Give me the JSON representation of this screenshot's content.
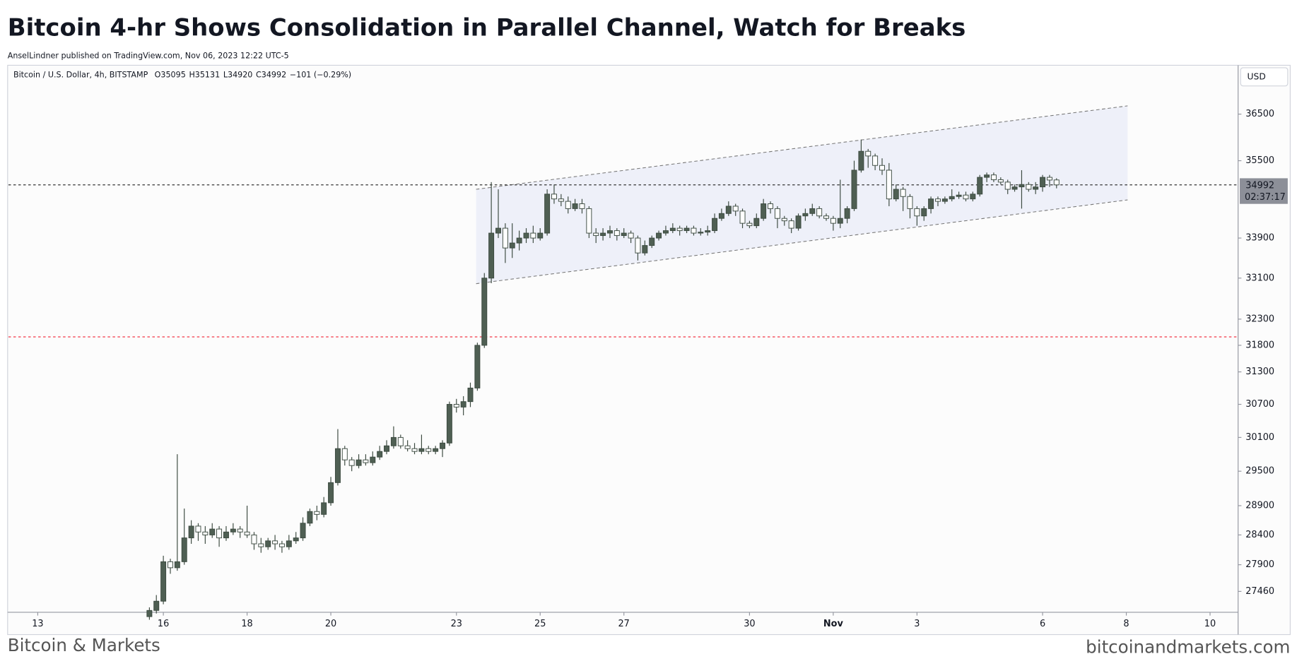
{
  "title": "Bitcoin 4-hr Shows Consolidation in Parallel Channel, Watch for Breaks",
  "subtitle": "AnselLindner published on TradingView.com, Nov 06, 2023 12:22 UTC-5",
  "footer_left": "Bitcoin & Markets",
  "footer_right": "bitcoinandmarkets.com",
  "chart_data": {
    "type": "candlestick",
    "symbol": "Bitcoin / U.S. Dollar, 4h, BITSTAMP",
    "ohlc_labels": [
      "O35095",
      "H35131",
      "L34920",
      "C34992"
    ],
    "change_label": "−101 (−0.29%)",
    "currency": "USD",
    "last_price_label": "34992",
    "countdown": "02:37:17",
    "log_scale": true,
    "grid": false,
    "up_color": "#4f5f53",
    "down_color": "#ffffff",
    "xlim": [
      12.3,
      41.67
    ],
    "xticks": [
      13,
      16,
      18,
      20,
      23,
      25,
      27,
      30,
      {
        "value": 32,
        "label": "Nov"
      },
      {
        "value": 34,
        "label": "3"
      },
      {
        "value": 37,
        "label": "6"
      },
      {
        "value": 39,
        "label": "8"
      },
      {
        "value": 41,
        "label": "10"
      }
    ],
    "ylim": [
      27120,
      37560
    ],
    "yticks": [
      36500,
      35500,
      33900,
      33100,
      32300,
      31800,
      31300,
      30700,
      30100,
      29500,
      28900,
      28400,
      27900,
      27460
    ],
    "x": [
      15.667,
      15.833,
      16,
      16.167,
      16.333,
      16.5,
      16.667,
      16.833,
      17,
      17.167,
      17.333,
      17.5,
      17.667,
      17.833,
      18,
      18.167,
      18.333,
      18.5,
      18.667,
      18.833,
      19,
      19.167,
      19.333,
      19.5,
      19.667,
      19.833,
      20,
      20.167,
      20.333,
      20.5,
      20.667,
      20.833,
      21,
      21.167,
      21.333,
      21.5,
      21.667,
      21.833,
      22,
      22.167,
      22.333,
      22.5,
      22.667,
      22.833,
      23,
      23.167,
      23.333,
      23.5,
      23.667,
      23.833,
      24,
      24.167,
      24.333,
      24.5,
      24.667,
      24.833,
      25,
      25.167,
      25.333,
      25.5,
      25.667,
      25.833,
      26,
      26.167,
      26.333,
      26.5,
      26.667,
      26.833,
      27,
      27.167,
      27.333,
      27.5,
      27.667,
      27.833,
      28,
      28.167,
      28.333,
      28.5,
      28.667,
      28.833,
      29,
      29.167,
      29.333,
      29.5,
      29.667,
      29.833,
      30,
      30.167,
      30.333,
      30.5,
      30.667,
      30.833,
      31,
      31.167,
      31.333,
      31.5,
      31.667,
      31.833,
      32,
      32.167,
      32.333,
      32.5,
      32.667,
      32.833,
      33,
      33.167,
      33.333,
      33.5,
      33.667,
      33.833,
      34,
      34.167,
      34.333,
      34.5,
      34.667,
      34.833,
      35,
      35.167,
      35.333,
      35.5,
      35.667,
      35.833,
      36,
      36.167,
      36.333,
      36.5,
      36.667,
      36.833,
      37,
      37.167,
      37.333
    ],
    "open": [
      27050,
      27150,
      27300,
      27950,
      27850,
      27950,
      28350,
      28550,
      28450,
      28400,
      28500,
      28350,
      28450,
      28500,
      28450,
      28400,
      28250,
      28200,
      28300,
      28250,
      28200,
      28300,
      28350,
      28600,
      28800,
      28750,
      28950,
      29300,
      29900,
      29700,
      29600,
      29700,
      29650,
      29750,
      29850,
      29950,
      30100,
      29950,
      29900,
      29850,
      29900,
      29850,
      29900,
      30000,
      30700,
      30650,
      30750,
      31000,
      31800,
      33100,
      34000,
      34100,
      33700,
      33800,
      33900,
      34000,
      33900,
      34000,
      34800,
      34700,
      34650,
      34500,
      34600,
      34500,
      34000,
      33950,
      34000,
      34050,
      33950,
      34000,
      33900,
      33600,
      33750,
      33900,
      34000,
      34050,
      34100,
      34050,
      34100,
      34000,
      34020,
      34050,
      34300,
      34400,
      34550,
      34450,
      34200,
      34150,
      34300,
      34600,
      34500,
      34300,
      34250,
      34100,
      34350,
      34400,
      34500,
      34350,
      34300,
      34200,
      34300,
      34500,
      35300,
      35700,
      35600,
      35400,
      35300,
      34700,
      34900,
      34750,
      34500,
      34350,
      34500,
      34700,
      34650,
      34700,
      34750,
      34780,
      34700,
      34800,
      35150,
      35200,
      35100,
      35050,
      34900,
      34950,
      35000,
      34900,
      34950,
      35150,
      35095
    ],
    "high": [
      27200,
      27400,
      28050,
      28000,
      29800,
      28850,
      28650,
      28600,
      28550,
      28600,
      28550,
      28550,
      28600,
      28550,
      28900,
      28450,
      28350,
      28350,
      28400,
      28300,
      28400,
      28450,
      28700,
      28850,
      28900,
      29050,
      29400,
      30250,
      29950,
      29750,
      29800,
      29800,
      29850,
      29950,
      30050,
      30300,
      30150,
      30050,
      30000,
      30150,
      29950,
      29950,
      30050,
      30750,
      30800,
      30850,
      31100,
      31850,
      33200,
      35050,
      34900,
      34200,
      34200,
      34050,
      34100,
      34150,
      34100,
      34900,
      35000,
      34800,
      34750,
      34700,
      34700,
      34550,
      34100,
      34100,
      34150,
      34100,
      34100,
      34050,
      33950,
      33850,
      33950,
      34050,
      34150,
      34200,
      34150,
      34150,
      34150,
      34100,
      34150,
      34400,
      34500,
      34650,
      34600,
      34500,
      34250,
      34400,
      34700,
      34650,
      34550,
      34350,
      34300,
      34400,
      34500,
      34600,
      34550,
      34400,
      34350,
      35100,
      34550,
      35500,
      35950,
      35750,
      35650,
      35550,
      35450,
      35000,
      34950,
      34800,
      34550,
      34550,
      34750,
      34750,
      34750,
      34900,
      34850,
      34850,
      34850,
      35200,
      35250,
      35250,
      35150,
      35100,
      35000,
      35300,
      35050,
      35050,
      35200,
      35200,
      35131
    ],
    "low": [
      27000,
      27100,
      27250,
      27750,
      27800,
      27900,
      28250,
      28300,
      28250,
      28350,
      28200,
      28300,
      28400,
      28350,
      28350,
      28150,
      28100,
      28150,
      28150,
      28100,
      28150,
      28250,
      28300,
      28550,
      28650,
      28700,
      28900,
      29250,
      29600,
      29500,
      29550,
      29600,
      29600,
      29700,
      29800,
      29900,
      29900,
      29850,
      29800,
      29800,
      29800,
      29800,
      29750,
      29950,
      30550,
      30500,
      30650,
      30950,
      31750,
      33000,
      33900,
      33400,
      33500,
      33650,
      33800,
      33800,
      33850,
      33950,
      34600,
      34550,
      34400,
      34450,
      34400,
      33900,
      33800,
      33850,
      33900,
      33850,
      33900,
      33800,
      33450,
      33550,
      33700,
      33850,
      33950,
      34000,
      33950,
      34000,
      33950,
      33950,
      33950,
      34000,
      34250,
      34350,
      34350,
      34100,
      34100,
      34100,
      34250,
      34400,
      34100,
      34150,
      34000,
      34050,
      34250,
      34350,
      34300,
      34250,
      34050,
      34100,
      34200,
      34450,
      35250,
      35350,
      35300,
      35200,
      34550,
      34650,
      34450,
      34300,
      34150,
      34250,
      34400,
      34550,
      34600,
      34650,
      34700,
      34650,
      34650,
      34750,
      35050,
      35050,
      35000,
      34800,
      34850,
      34500,
      34850,
      34800,
      34850,
      34950,
      34920
    ],
    "close": [
      27150,
      27300,
      27950,
      27850,
      27950,
      28350,
      28550,
      28450,
      28400,
      28500,
      28350,
      28450,
      28500,
      28450,
      28400,
      28250,
      28200,
      28300,
      28250,
      28200,
      28300,
      28350,
      28600,
      28800,
      28750,
      28950,
      29300,
      29900,
      29700,
      29600,
      29700,
      29650,
      29750,
      29850,
      29950,
      30100,
      29950,
      29900,
      29850,
      29900,
      29850,
      29900,
      30000,
      30700,
      30650,
      30750,
      31000,
      31800,
      33100,
      34000,
      34100,
      33700,
      33800,
      33900,
      34000,
      33900,
      34000,
      34800,
      34700,
      34650,
      34500,
      34600,
      34500,
      34000,
      33950,
      34000,
      34050,
      33950,
      34000,
      33900,
      33600,
      33750,
      33900,
      34000,
      34050,
      34100,
      34050,
      34100,
      34000,
      34020,
      34050,
      34300,
      34400,
      34550,
      34450,
      34200,
      34150,
      34300,
      34600,
      34500,
      34300,
      34250,
      34100,
      34350,
      34400,
      34500,
      34350,
      34300,
      34200,
      34300,
      34500,
      35300,
      35700,
      35600,
      35400,
      35300,
      34700,
      34900,
      34750,
      34500,
      34350,
      34500,
      34700,
      34650,
      34700,
      34750,
      34780,
      34700,
      34800,
      35150,
      35200,
      35100,
      35050,
      34900,
      34950,
      35000,
      34900,
      34950,
      35150,
      35093,
      34992
    ],
    "channel": {
      "x": [
        23.47,
        39.03
      ],
      "upper": [
        34900,
        36680
      ],
      "lower": [
        32990,
        34680
      ],
      "color": "#e9ecf8"
    },
    "hlines": [
      {
        "value": 34992,
        "color": "#333333"
      },
      {
        "value": 31960,
        "color": "#f23645"
      }
    ]
  }
}
